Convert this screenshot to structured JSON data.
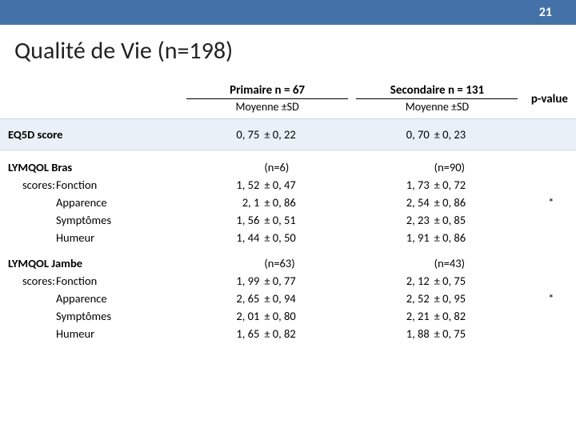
{
  "header": {
    "page_number": "21"
  },
  "title": "Qualité de Vie (n=198)",
  "columns": {
    "primary_header": "Primaire n = 67",
    "secondary_header": "Secondaire n = 131",
    "sub_label": "Moyenne ±SD",
    "pvalue_header": "p-value"
  },
  "eq5d": {
    "label": "EQ5D score",
    "primary_mean": "0, 75",
    "primary_sd": "± 0, 22",
    "secondary_mean": "0, 70",
    "secondary_sd": "± 0, 23",
    "pvalue": ""
  },
  "bras": {
    "section_label": "LYMQOL Bras",
    "scores_label": "scores:",
    "primary_n": "(n=6)",
    "secondary_n": "(n=90)",
    "pvalue": "*",
    "rows": [
      {
        "label": "Fonction",
        "pm": "1, 52",
        "psd": "± 0, 47",
        "sm": "1, 73",
        "ssd": "± 0, 72"
      },
      {
        "label": "Apparence",
        "pm": "2, 1",
        "psd": "± 0, 86",
        "sm": "2, 54",
        "ssd": "± 0, 86"
      },
      {
        "label": "Symptômes",
        "pm": "1, 56",
        "psd": "± 0, 51",
        "sm": "2, 23",
        "ssd": "± 0, 85"
      },
      {
        "label": "Humeur",
        "pm": "1, 44",
        "psd": "± 0, 50",
        "sm": "1, 91",
        "ssd": "± 0, 86"
      }
    ]
  },
  "jambe": {
    "section_label": "LYMQOL Jambe",
    "scores_label": "scores:",
    "primary_n": "(n=63)",
    "secondary_n": "(n=43)",
    "pvalue": "*",
    "rows": [
      {
        "label": "Fonction",
        "pm": "1, 99",
        "psd": "± 0, 77",
        "sm": "2, 12",
        "ssd": "± 0, 75"
      },
      {
        "label": "Apparence",
        "pm": "2, 65",
        "psd": "± 0, 94",
        "sm": "2, 52",
        "ssd": "± 0, 95"
      },
      {
        "label": "Symptômes",
        "pm": "2, 01",
        "psd": "± 0, 80",
        "sm": "2, 21",
        "ssd": "± 0, 82"
      },
      {
        "label": "Humeur",
        "pm": "1, 65",
        "psd": "± 0, 82",
        "sm": "1, 88",
        "ssd": "± 0, 75"
      }
    ]
  },
  "colors": {
    "header_bg": "#4472a8",
    "shade_bg": "#eaf0f8",
    "text": "#222222"
  }
}
